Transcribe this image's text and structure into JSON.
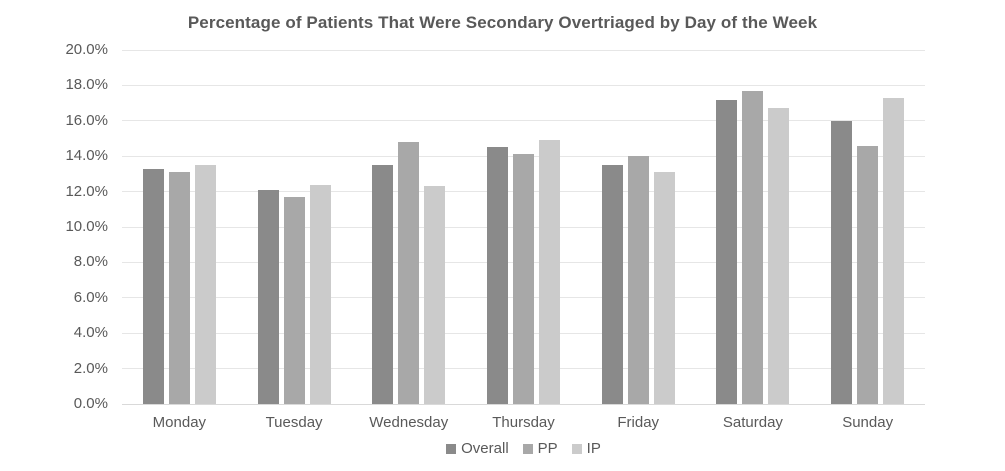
{
  "title": "Percentage of Patients That Were Secondary Overtriaged by Day of the Week",
  "chart_data": {
    "type": "bar",
    "title": "Percentage of Patients That Were Secondary Overtriaged by Day of the Week",
    "categories": [
      "Monday",
      "Tuesday",
      "Wednesday",
      "Thursday",
      "Friday",
      "Saturday",
      "Sunday"
    ],
    "series": [
      {
        "name": "Overall",
        "color": "#8a8a8a",
        "values": [
          13.3,
          12.1,
          13.5,
          14.5,
          13.5,
          17.2,
          16.0
        ]
      },
      {
        "name": "PP",
        "color": "#a8a8a8",
        "values": [
          13.1,
          11.7,
          14.8,
          14.1,
          14.0,
          17.7,
          14.6
        ]
      },
      {
        "name": "IP",
        "color": "#cbcbcb",
        "values": [
          13.5,
          12.4,
          12.3,
          14.9,
          13.1,
          16.7,
          17.3
        ]
      }
    ],
    "xlabel": "",
    "ylabel": "",
    "ylim": [
      0,
      20
    ],
    "y_tick_step": 2,
    "y_tick_labels": [
      "0.0%",
      "2.0%",
      "4.0%",
      "6.0%",
      "8.0%",
      "10.0%",
      "12.0%",
      "14.0%",
      "16.0%",
      "18.0%",
      "20.0%"
    ],
    "grid": true,
    "legend_position": "bottom",
    "legend_entries": [
      "Overall",
      "PP",
      "IP"
    ]
  },
  "colors": {
    "title_text": "#595959",
    "axis_text": "#595959",
    "gridline": "#e6e6e6",
    "baseline": "#d9d9d9",
    "background": "#ffffff"
  }
}
